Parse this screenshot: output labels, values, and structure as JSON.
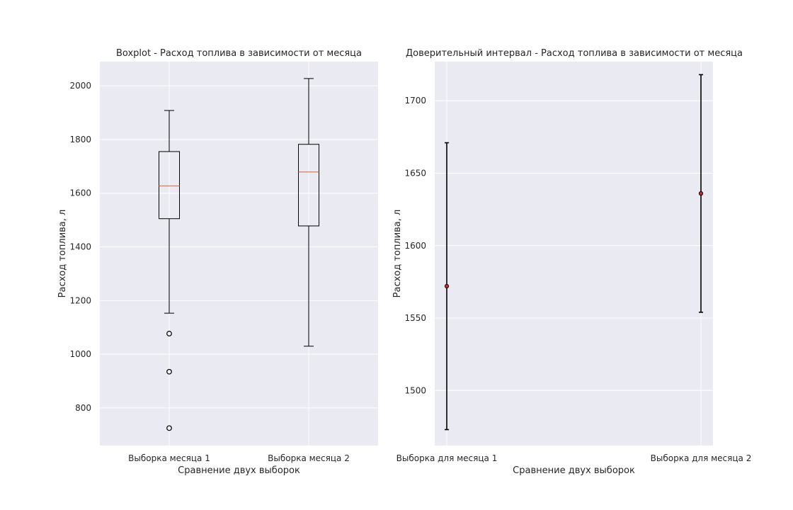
{
  "chart_data": [
    {
      "type": "boxplot",
      "title": "Boxplot - Расход топлива в зависимости от месяца",
      "xlabel": "Сравнение двух выборок",
      "ylabel": "Расход топлива, л",
      "ylim": [
        660,
        2090
      ],
      "yticks": [
        800,
        1000,
        1200,
        1400,
        1600,
        1800,
        2000
      ],
      "grid": true,
      "categories": [
        "Выборка месяца 1",
        "Выборка месяца 2"
      ],
      "boxes": [
        {
          "name": "Выборка месяца 1",
          "whisker_low": 1153,
          "q1": 1505,
          "median": 1627,
          "q3": 1755,
          "whisker_high": 1908,
          "fliers": [
            1077,
            935,
            725
          ]
        },
        {
          "name": "Выборка месяца 2",
          "whisker_low": 1030,
          "q1": 1478,
          "median": 1679,
          "q3": 1782,
          "whisker_high": 2027,
          "fliers": []
        }
      ]
    },
    {
      "type": "errorbar",
      "title": "Доверительный интервал - Расход топлива в зависимости от месяца",
      "xlabel": "Сравнение двух выборок",
      "ylabel": "Расход топлива, л",
      "ylim": [
        1462,
        1727
      ],
      "yticks": [
        1500,
        1550,
        1600,
        1650,
        1700
      ],
      "grid": true,
      "categories": [
        "Выборка для месяца 1",
        "Выборка для месяца 2"
      ],
      "points": [
        {
          "name": "Выборка для месяца 1",
          "mean": 1572,
          "lower": 1473,
          "upper": 1671
        },
        {
          "name": "Выборка для месяца 2",
          "mean": 1636,
          "lower": 1554,
          "upper": 1718
        }
      ]
    }
  ]
}
